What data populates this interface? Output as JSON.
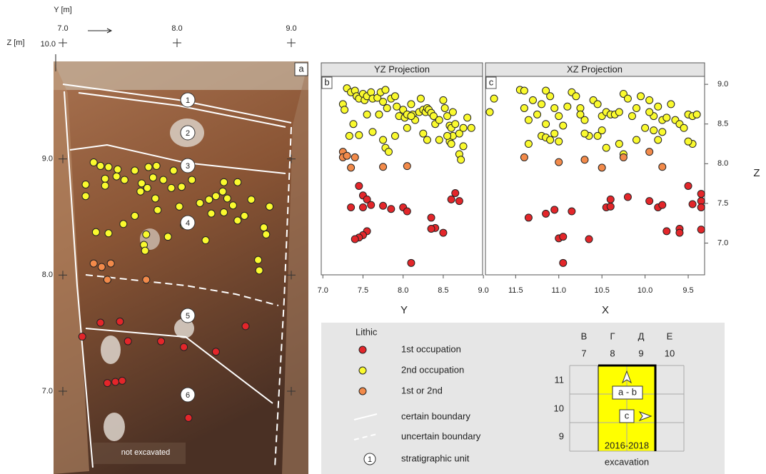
{
  "chart_data": [
    {
      "type": "scatter",
      "panel": "a",
      "xlabel": "Y [m]",
      "ylabel": "Z [m]",
      "xlim": [
        7,
        9
      ],
      "ylim": [
        7,
        10
      ],
      "xticks": [
        {
          "value": 7,
          "label": "7.0"
        },
        {
          "value": 8,
          "label": "8.0"
        },
        {
          "value": 9,
          "label": "9.0"
        }
      ],
      "yticks": [
        {
          "value": 10,
          "label": "10.0"
        },
        {
          "value": 9,
          "label": "9.0"
        },
        {
          "value": 8,
          "label": "8.0"
        },
        {
          "value": 7,
          "label": "7.0"
        }
      ],
      "legend_title": "Lithic",
      "series": [
        {
          "name": "1st occupation",
          "color": "#e3262a",
          "x": [
            7.33,
            7.5,
            7.17,
            7.57,
            7.86,
            8.06,
            8.34,
            8.6,
            7.39,
            7.46,
            7.52,
            8.1
          ],
          "values": [
            7.59,
            7.6,
            7.47,
            7.43,
            7.43,
            7.38,
            7.34,
            7.56,
            7.07,
            7.08,
            7.09,
            6.77
          ]
        },
        {
          "name": "2nd occupation",
          "color": "#fafa2e",
          "x": [
            7.27,
            7.33,
            7.4,
            7.48,
            7.63,
            7.75,
            7.82,
            7.97,
            7.2,
            7.37,
            7.47,
            7.54,
            7.69,
            7.79,
            7.88,
            8.04,
            8.13,
            7.2,
            7.37,
            7.68,
            7.74,
            7.81,
            7.95,
            8.2,
            8.28,
            8.34,
            8.4,
            8.41,
            8.44,
            8.53,
            8.49,
            8.65,
            8.59,
            8.53,
            8.41,
            8.3,
            8.02,
            7.83,
            7.63,
            7.53,
            7.29,
            7.4,
            7.73,
            7.92,
            8.25,
            8.76,
            8.78,
            8.71,
            8.72,
            8.81,
            7.71,
            7.72,
            8.06
          ],
          "values": [
            8.97,
            8.94,
            8.93,
            8.91,
            8.9,
            8.93,
            8.94,
            8.9,
            8.78,
            8.83,
            8.85,
            8.82,
            8.79,
            8.84,
            8.82,
            8.76,
            8.82,
            8.68,
            8.77,
            8.72,
            8.75,
            8.66,
            8.75,
            8.62,
            8.65,
            8.68,
            8.72,
            8.8,
            8.66,
            8.8,
            8.6,
            8.65,
            8.51,
            8.47,
            8.54,
            8.53,
            8.59,
            8.56,
            8.51,
            8.44,
            8.37,
            8.36,
            8.35,
            8.33,
            8.3,
            8.41,
            8.35,
            8.13,
            8.04,
            8.59,
            8.26,
            8.21,
            8.43
          ]
        },
        {
          "name": "1st or 2nd",
          "color": "#f28a4a",
          "x": [
            7.27,
            7.34,
            7.42,
            7.39,
            7.73
          ],
          "values": [
            8.1,
            8.07,
            8.1,
            7.96,
            7.96
          ]
        }
      ]
    },
    {
      "type": "scatter",
      "panel": "b",
      "title": "YZ Projection",
      "xlabel": "Y",
      "xlim": [
        6.98,
        8.99
      ],
      "ylim": [
        6.6,
        9.1
      ],
      "xticks": [
        {
          "value": 7,
          "label": "7.0"
        },
        {
          "value": 7.5,
          "label": "7.5"
        },
        {
          "value": 8,
          "label": "8.0"
        },
        {
          "value": 8.5,
          "label": "8.5"
        },
        {
          "value": 9,
          "label": "9.0"
        }
      ],
      "series": [
        {
          "color": "#e3262a",
          "x": [
            7.35,
            7.45,
            7.5,
            7.55,
            7.5,
            7.6,
            7.75,
            7.85,
            8.0,
            8.05,
            8.35,
            8.4,
            8.35,
            8.5,
            8.6,
            8.65,
            8.7,
            7.55,
            7.5,
            7.45,
            7.4,
            8.1
          ],
          "values": [
            7.45,
            7.72,
            7.6,
            7.55,
            7.45,
            7.48,
            7.47,
            7.43,
            7.45,
            7.4,
            7.32,
            7.19,
            7.18,
            7.13,
            7.55,
            7.63,
            7.53,
            7.15,
            7.1,
            7.07,
            7.05,
            6.75
          ]
        },
        {
          "color": "#fafa2e",
          "x": [
            7.25,
            7.27,
            7.3,
            7.35,
            7.4,
            7.42,
            7.45,
            7.5,
            7.52,
            7.55,
            7.6,
            7.62,
            7.68,
            7.72,
            7.78,
            7.75,
            7.8,
            7.85,
            7.9,
            7.92,
            7.95,
            8.0,
            8.02,
            8.05,
            8.1,
            8.12,
            8.15,
            8.2,
            8.22,
            8.25,
            8.28,
            8.3,
            8.32,
            8.35,
            8.38,
            8.4,
            8.45,
            8.5,
            8.52,
            8.55,
            8.58,
            8.6,
            8.62,
            8.65,
            8.58,
            8.62,
            8.7,
            8.75,
            8.8,
            8.85,
            8.7,
            8.72,
            7.33,
            7.38,
            7.45,
            7.55,
            7.62,
            7.7,
            7.75,
            7.78,
            7.82,
            7.9,
            8.05,
            8.1,
            8.25,
            8.3,
            8.45,
            8.55,
            8.75,
            8.6
          ],
          "values": [
            8.75,
            8.68,
            8.95,
            8.9,
            8.92,
            8.85,
            8.82,
            8.88,
            8.8,
            8.85,
            8.9,
            8.82,
            8.83,
            8.9,
            8.93,
            8.78,
            8.7,
            8.82,
            8.85,
            8.72,
            8.6,
            8.68,
            8.58,
            8.62,
            8.75,
            8.62,
            8.55,
            8.65,
            8.82,
            8.68,
            8.65,
            8.7,
            8.68,
            8.64,
            8.6,
            8.5,
            8.55,
            8.8,
            8.7,
            8.6,
            8.48,
            8.45,
            8.65,
            8.5,
            8.28,
            8.35,
            8.38,
            8.45,
            8.58,
            8.45,
            8.12,
            8.05,
            8.35,
            8.5,
            8.36,
            8.62,
            8.4,
            8.62,
            8.3,
            8.2,
            8.15,
            8.35,
            8.45,
            8.6,
            8.38,
            8.3,
            8.3,
            8.35,
            8.22,
            8.25
          ]
        },
        {
          "color": "#f28a4a",
          "x": [
            7.25,
            7.25,
            7.3,
            7.4,
            7.35,
            7.75,
            8.05
          ],
          "values": [
            8.15,
            8.08,
            8.1,
            8.08,
            7.95,
            7.96,
            7.97
          ]
        }
      ]
    },
    {
      "type": "scatter",
      "panel": "c",
      "title": "XZ Projection",
      "xlabel": "X",
      "ylabel": "Z",
      "xlim": [
        11.85,
        9.31
      ],
      "ylim": [
        6.6,
        9.1
      ],
      "xticks": [
        {
          "value": 11.5,
          "label": "11.5"
        },
        {
          "value": 11,
          "label": "11.0"
        },
        {
          "value": 10.5,
          "label": "10.5"
        },
        {
          "value": 10,
          "label": "10.0"
        },
        {
          "value": 9.5,
          "label": "9.5"
        }
      ],
      "yticks": [
        {
          "value": 9,
          "label": "9.0"
        },
        {
          "value": 8.5,
          "label": "8.5"
        },
        {
          "value": 8,
          "label": "8.0"
        },
        {
          "value": 7.5,
          "label": "7.5"
        },
        {
          "value": 7,
          "label": "7.0"
        }
      ],
      "series": [
        {
          "color": "#e3262a",
          "x": [
            11.35,
            11.15,
            11.05,
            10.85,
            10.65,
            11.0,
            10.95,
            10.95,
            10.45,
            10.4,
            10.4,
            10.2,
            9.95,
            9.85,
            9.8,
            9.75,
            9.6,
            9.6,
            9.5,
            9.45,
            9.35,
            9.35,
            9.35,
            9.35
          ],
          "values": [
            7.32,
            7.37,
            7.42,
            7.4,
            7.05,
            7.06,
            7.08,
            6.75,
            7.45,
            7.46,
            7.55,
            7.58,
            7.53,
            7.45,
            7.48,
            7.15,
            7.18,
            7.13,
            7.72,
            7.49,
            7.62,
            7.53,
            7.45,
            7.17
          ]
        },
        {
          "color": "#fafa2e",
          "x": [
            11.75,
            11.8,
            11.45,
            11.4,
            11.4,
            11.35,
            11.3,
            11.25,
            11.2,
            11.15,
            11.1,
            11.05,
            11.0,
            11.15,
            11.2,
            11.15,
            11.1,
            11.05,
            11.0,
            10.95,
            10.9,
            10.85,
            10.8,
            10.75,
            10.7,
            10.65,
            10.7,
            10.6,
            10.55,
            10.5,
            10.45,
            10.4,
            10.35,
            10.3,
            10.25,
            10.2,
            10.15,
            10.1,
            10.05,
            10.0,
            9.95,
            9.9,
            9.85,
            9.8,
            9.75,
            9.7,
            9.65,
            9.6,
            9.55,
            9.5,
            9.45,
            9.4,
            9.45,
            9.5,
            9.85,
            9.8,
            10.3,
            10.25,
            10.45,
            10.55,
            10.5,
            10.1,
            11.35,
            9.9,
            9.95,
            10.75
          ],
          "values": [
            8.82,
            8.65,
            8.93,
            8.92,
            8.7,
            8.55,
            8.8,
            8.62,
            8.75,
            8.92,
            8.85,
            8.7,
            8.6,
            8.5,
            8.35,
            8.33,
            8.3,
            8.38,
            8.28,
            8.48,
            8.72,
            8.9,
            8.85,
            8.7,
            8.55,
            8.35,
            8.38,
            8.8,
            8.75,
            8.6,
            8.65,
            8.62,
            8.62,
            8.65,
            8.88,
            8.82,
            8.6,
            8.7,
            8.85,
            8.45,
            8.8,
            8.6,
            8.72,
            8.55,
            8.58,
            8.75,
            8.55,
            8.5,
            8.45,
            8.62,
            8.6,
            8.62,
            8.25,
            8.28,
            8.3,
            8.4,
            8.25,
            8.12,
            8.2,
            8.35,
            8.42,
            8.3,
            8.25,
            8.42,
            8.65,
            8.62
          ]
        },
        {
          "color": "#f28a4a",
          "x": [
            11.4,
            11.0,
            10.7,
            10.5,
            10.25,
            9.95,
            9.8
          ],
          "values": [
            8.08,
            8.02,
            8.05,
            7.95,
            8.08,
            8.15,
            7.96
          ]
        }
      ]
    }
  ],
  "photo": {
    "units": [
      "1",
      "2",
      "3",
      "4",
      "5",
      "6"
    ],
    "note": "not excavated"
  },
  "boundary_legend": {
    "certain": "certain boundary",
    "uncertain": "uncertain boundary",
    "unit_symbol": "1",
    "unit": "stratigraphic unit"
  },
  "map": {
    "columns": [
      "В",
      "Г",
      "Д",
      "Е"
    ],
    "column_numbers": [
      "7",
      "8",
      "9",
      "10"
    ],
    "rows": [
      "11",
      "10",
      "9"
    ],
    "sections": [
      "a - b",
      "c"
    ],
    "years": "2016-2018",
    "caption": "excavation"
  }
}
